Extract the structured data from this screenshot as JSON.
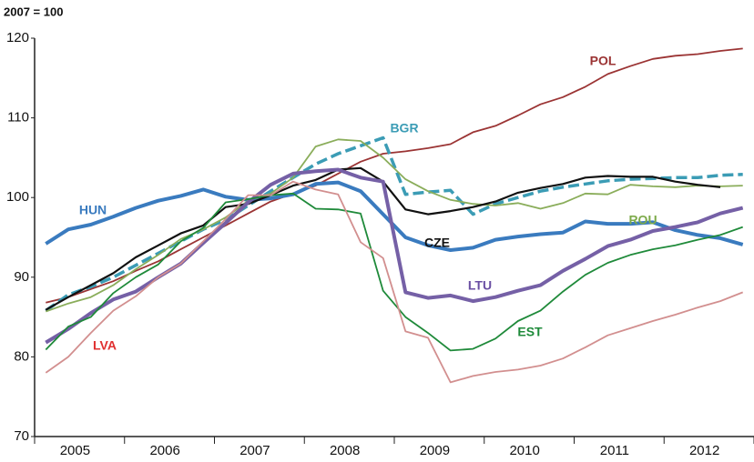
{
  "chart_data": {
    "type": "line",
    "y_label": "2007 = 100",
    "x": [
      2005.125,
      2005.375,
      2005.625,
      2005.875,
      2006.125,
      2006.375,
      2006.625,
      2006.875,
      2007.125,
      2007.375,
      2007.625,
      2007.875,
      2008.125,
      2008.375,
      2008.625,
      2008.875,
      2009.125,
      2009.375,
      2009.625,
      2009.875,
      2010.125,
      2010.375,
      2010.625,
      2010.875,
      2011.125,
      2011.375,
      2011.625,
      2011.875,
      2012.125,
      2012.375,
      2012.625,
      2012.875
    ],
    "xlim": [
      2005,
      2013
    ],
    "xticks": [
      2005,
      2006,
      2007,
      2008,
      2009,
      2010,
      2011,
      2012,
      2013
    ],
    "xlabels": [
      2005,
      2006,
      2007,
      2008,
      2009,
      2010,
      2011,
      2012
    ],
    "ylim": [
      70,
      120
    ],
    "yticks": [
      70,
      80,
      90,
      100,
      110,
      120
    ],
    "grid": false,
    "series": [
      {
        "name": "POL",
        "color": "#9b3434",
        "label_color": "#9b3434",
        "values": [
          86.8,
          87.5,
          88.5,
          89.5,
          90.8,
          92,
          93.5,
          95,
          96.5,
          98,
          99.5,
          100.5,
          101.5,
          103,
          104.5,
          105.5,
          105.8,
          106.2,
          106.7,
          108.2,
          109,
          110.3,
          111.7,
          112.6,
          113.9,
          115.5,
          116.5,
          117.4,
          117.8,
          118,
          118.4,
          118.7
        ]
      },
      {
        "name": "BGR",
        "color": "#3b9cb5",
        "label_color": "#3b9cb5",
        "dashed": true,
        "values": [
          85.8,
          87.8,
          88.8,
          90,
          91.5,
          93,
          94.5,
          96,
          97.2,
          99,
          100.8,
          102.5,
          104.2,
          105.5,
          106.5,
          107.5,
          100.4,
          100.7,
          100.9,
          97.9,
          99.2,
          100,
          100.8,
          101.3,
          101.7,
          102.1,
          102.3,
          102.4,
          102.5,
          102.5,
          102.8,
          102.9
        ]
      },
      {
        "name": "HUN",
        "color": "#3a7bbf",
        "label_color": "#3a7bbf",
        "values": [
          94.2,
          96,
          96.6,
          97.6,
          98.7,
          99.6,
          100.2,
          101,
          100.1,
          99.7,
          99.9,
          100.4,
          101.7,
          101.9,
          100.8,
          97.9,
          95,
          94,
          93.4,
          93.7,
          94.7,
          95.1,
          95.4,
          95.6,
          97,
          96.7,
          96.7,
          96.9,
          95.9,
          95.3,
          94.9,
          94.1
        ]
      },
      {
        "name": "ROU",
        "color": "#8aad5a",
        "label_color": "#7daa4a",
        "values": [
          85.7,
          86.7,
          87.5,
          89,
          91,
          92.8,
          94.8,
          96,
          97.5,
          99.6,
          100.5,
          102.5,
          106.4,
          107.3,
          107.1,
          105,
          102.3,
          100.8,
          99.7,
          99.2,
          99,
          99.3,
          98.6,
          99.3,
          100.5,
          100.4,
          101.6,
          101.4,
          101.3,
          101.5,
          101.4,
          101.5
        ]
      },
      {
        "name": "CZE",
        "color": "#111111",
        "label_color": "#111111",
        "values": [
          85.9,
          87.5,
          89,
          90.5,
          92.5,
          94,
          95.5,
          96.5,
          98.8,
          99.2,
          100.3,
          101.5,
          102.2,
          103.5,
          103.7,
          102,
          98.5,
          97.9,
          98.3,
          98.8,
          99.5,
          100.6,
          101.2,
          101.7,
          102.5,
          102.7,
          102.6,
          102.6,
          102,
          101.6,
          101.3,
          null
        ]
      },
      {
        "name": "LTU",
        "color": "#7560a6",
        "label_color": "#6a4fa3",
        "values": [
          81.8,
          83.5,
          85.5,
          87.2,
          88.2,
          90,
          91.7,
          94.3,
          96.8,
          99.4,
          101.6,
          103,
          103.3,
          103.5,
          102.5,
          102,
          88.1,
          87.4,
          87.7,
          87,
          87.5,
          88.3,
          89,
          90.8,
          92.3,
          93.9,
          94.7,
          95.8,
          96.3,
          96.9,
          98,
          98.7
        ]
      },
      {
        "name": "EST",
        "color": "#1f8a3a",
        "label_color": "#1e8a3a",
        "values": [
          80.9,
          83.8,
          85,
          88,
          90,
          91.6,
          94.5,
          96.2,
          99.4,
          99.8,
          100.3,
          100.5,
          98.6,
          98.5,
          98,
          88.3,
          85,
          83,
          80.8,
          81,
          82.3,
          84.5,
          85.8,
          88.2,
          90.3,
          91.8,
          92.8,
          93.5,
          94,
          94.7,
          95.3,
          96.3
        ]
      },
      {
        "name": "LVA",
        "color": "#d28f8f",
        "label_color": "#e03030",
        "values": [
          78,
          80,
          83,
          85.8,
          87.6,
          90,
          91.7,
          94.5,
          97.3,
          100.3,
          100.3,
          102,
          101,
          100.4,
          94.4,
          92.4,
          83.2,
          82.4,
          76.8,
          77.6,
          78.1,
          78.4,
          78.9,
          79.8,
          81.2,
          82.7,
          83.6,
          84.5,
          85.3,
          86.2,
          87,
          88.1
        ]
      }
    ]
  }
}
